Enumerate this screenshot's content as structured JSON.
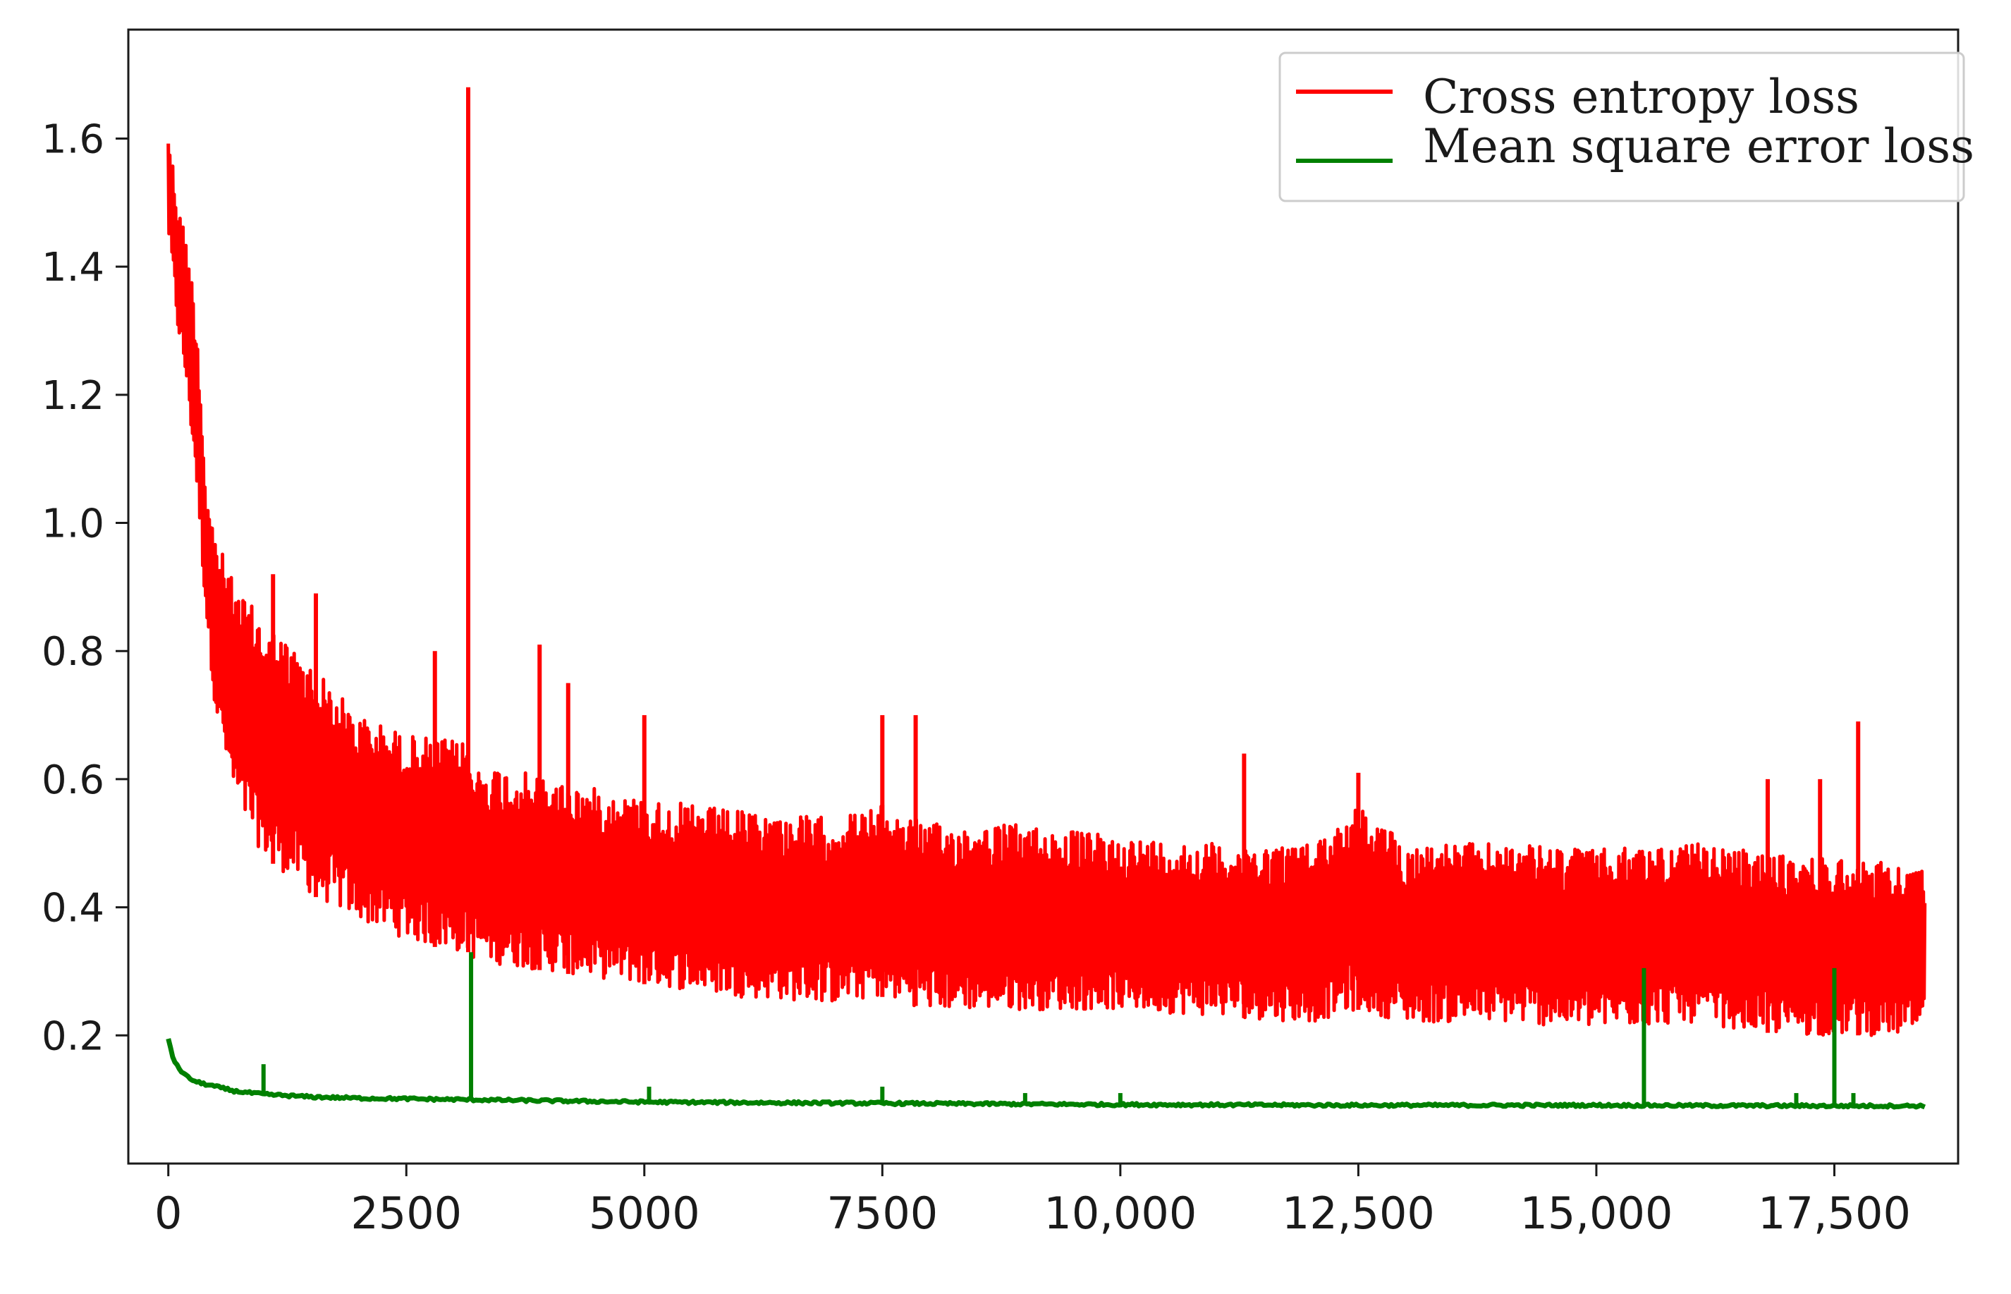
{
  "chart_data": {
    "type": "line",
    "title": "",
    "xlabel": "",
    "ylabel": "",
    "xlim": [
      -420,
      18800
    ],
    "ylim": [
      -0.0,
      1.77
    ],
    "x_ticks": [
      0,
      2500,
      5000,
      7500,
      10000,
      12500,
      15000,
      17500
    ],
    "x_tick_labels": [
      "0",
      "2500",
      "5000",
      "7500",
      "10,000",
      "12,500",
      "15,000",
      "17,500"
    ],
    "y_ticks": [
      0.2,
      0.4,
      0.6,
      0.8,
      1.0,
      1.2,
      1.4,
      1.6
    ],
    "y_tick_labels": [
      "0.2",
      "0.4",
      "0.6",
      "0.8",
      "1.0",
      "1.2",
      "1.4",
      "1.6"
    ],
    "grid": false,
    "legend_position": "top-right",
    "series": [
      {
        "name": "Cross entropy loss",
        "color": "#ff0000",
        "x": [
          0,
          100,
          200,
          300,
          400,
          500,
          700,
          1000,
          1500,
          2000,
          2500,
          3000,
          3150,
          3200,
          3500,
          4000,
          5000,
          6000,
          7000,
          7500,
          8000,
          9000,
          10000,
          11000,
          12000,
          12500,
          13000,
          14000,
          15000,
          16000,
          17000,
          17500,
          18000,
          18450
        ],
        "upper": [
          1.62,
          1.5,
          1.44,
          1.32,
          1.05,
          0.98,
          0.9,
          0.85,
          0.78,
          0.7,
          0.67,
          0.66,
          0.66,
          0.62,
          0.62,
          0.6,
          0.57,
          0.55,
          0.54,
          0.56,
          0.53,
          0.53,
          0.51,
          0.5,
          0.5,
          0.56,
          0.5,
          0.5,
          0.49,
          0.5,
          0.48,
          0.48,
          0.47,
          0.46
        ],
        "lower": [
          1.45,
          1.3,
          1.2,
          1.05,
          0.85,
          0.7,
          0.56,
          0.48,
          0.42,
          0.38,
          0.35,
          0.33,
          0.33,
          0.32,
          0.31,
          0.3,
          0.28,
          0.26,
          0.25,
          0.26,
          0.24,
          0.24,
          0.24,
          0.23,
          0.22,
          0.24,
          0.22,
          0.22,
          0.21,
          0.22,
          0.2,
          0.2,
          0.2,
          0.2
        ],
        "spikes": [
          [
            3150,
            1.68
          ],
          [
            3900,
            0.81
          ],
          [
            1100,
            0.92
          ],
          [
            1550,
            0.89
          ],
          [
            2800,
            0.8
          ],
          [
            4200,
            0.75
          ],
          [
            5000,
            0.7
          ],
          [
            7500,
            0.7
          ],
          [
            7850,
            0.7
          ],
          [
            11300,
            0.64
          ],
          [
            12500,
            0.61
          ],
          [
            17750,
            0.69
          ],
          [
            17350,
            0.6
          ],
          [
            16800,
            0.6
          ]
        ]
      },
      {
        "name": "Mean square error loss",
        "color": "#008000",
        "x": [
          0,
          50,
          100,
          200,
          300,
          500,
          700,
          1000,
          1500,
          2000,
          3000,
          4000,
          5000,
          7500,
          10000,
          12500,
          15000,
          17500,
          18450
        ],
        "y": [
          0.195,
          0.165,
          0.15,
          0.135,
          0.127,
          0.12,
          0.113,
          0.108,
          0.104,
          0.102,
          0.1,
          0.098,
          0.096,
          0.094,
          0.092,
          0.091,
          0.091,
          0.09,
          0.09
        ],
        "spikes": [
          [
            1000,
            0.155
          ],
          [
            3180,
            0.33
          ],
          [
            5050,
            0.12
          ],
          [
            7500,
            0.12
          ],
          [
            9000,
            0.11
          ],
          [
            10000,
            0.11
          ],
          [
            15500,
            0.305
          ],
          [
            17500,
            0.305
          ],
          [
            17700,
            0.11
          ],
          [
            17100,
            0.11
          ]
        ]
      }
    ]
  }
}
